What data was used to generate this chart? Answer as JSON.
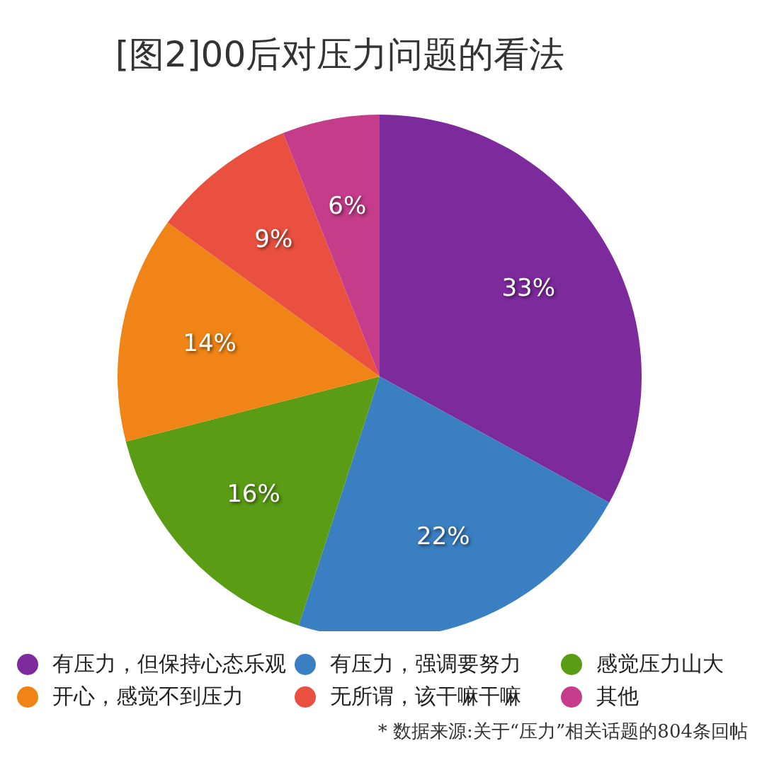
{
  "chart_data": {
    "type": "pie",
    "title": "[图2]00后对压力问题的看法",
    "categories": [
      "有压力，但保持心态乐观",
      "有压力，强调要努力",
      "感觉压力山大",
      "开心，感觉不到压力",
      "无所谓，该干嘛干嘛",
      "其他"
    ],
    "values": [
      33,
      22,
      16,
      14,
      9,
      6
    ],
    "colors": [
      "#7d2a9c",
      "#3a7fc1",
      "#5a9c14",
      "#f08416",
      "#e9503f",
      "#c43c8a"
    ],
    "value_labels": [
      "33%",
      "22%",
      "16%",
      "14%",
      "9%",
      "6%"
    ],
    "legend": "bottom",
    "annotations": [
      "* 数据来源:关于“压力”相关话题的804条回帖"
    ]
  }
}
